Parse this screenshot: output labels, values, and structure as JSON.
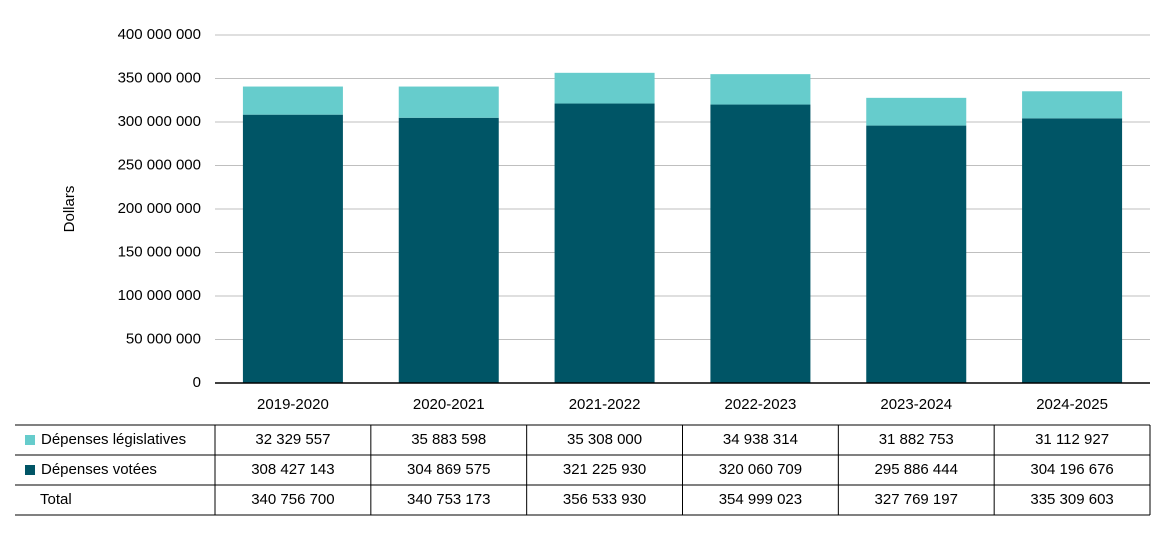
{
  "chart_data": {
    "type": "bar",
    "stacked": true,
    "y_label": "Dollars",
    "categories": [
      "2019-2020",
      "2020-2021",
      "2021-2022",
      "2022-2023",
      "2023-2024",
      "2024-2025"
    ],
    "series": [
      {
        "name": "Dépenses législatives",
        "color": "#66cccc",
        "values": [
          32329557,
          35883598,
          35308000,
          34938314,
          31882753,
          31112927
        ],
        "value_labels": [
          "32 329 557",
          "35 883 598",
          "35 308 000",
          "34 938 314",
          "31 882 753",
          "31 112 927"
        ]
      },
      {
        "name": "Dépenses votées",
        "color": "#005566",
        "values": [
          308427143,
          304869575,
          321225930,
          320060709,
          295886444,
          304196676
        ],
        "value_labels": [
          "308 427 143",
          "304 869 575",
          "321 225 930",
          "320 060 709",
          "295 886 444",
          "304 196 676"
        ]
      }
    ],
    "totals": {
      "name": "Total",
      "values": [
        340756700,
        340753173,
        356533930,
        354999023,
        327769197,
        335309603
      ],
      "value_labels": [
        "340 756 700",
        "340 753 173",
        "356 533 930",
        "354 999 023",
        "327 769 197",
        "335 309 603"
      ]
    },
    "ylim": [
      0,
      400000000
    ],
    "yticks": [
      0,
      {
        "value": 50000000,
        "label": "50 000 000"
      },
      {
        "value": 100000000,
        "label": "100 000 000"
      },
      {
        "value": 150000000,
        "label": "150 000 000"
      },
      {
        "value": 200000000,
        "label": "200 000 000"
      },
      {
        "value": 250000000,
        "label": "250 000 000"
      },
      {
        "value": 300000000,
        "label": "300 000 000"
      },
      {
        "value": 350000000,
        "label": "350 000 000"
      },
      {
        "value": 400000000,
        "label": "400 000 000"
      }
    ],
    "grid": true
  }
}
